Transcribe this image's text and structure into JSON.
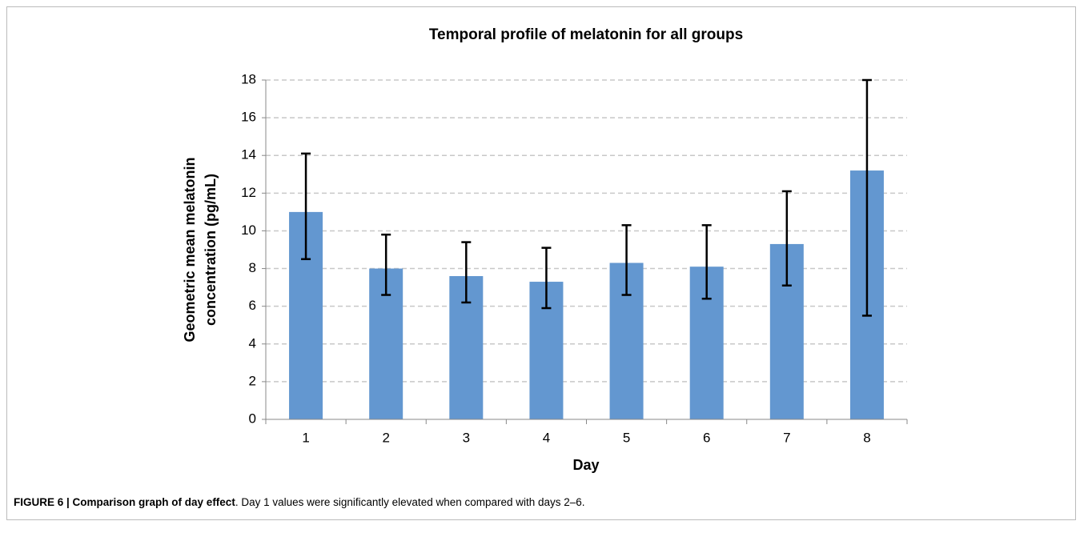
{
  "chart_data": {
    "type": "bar",
    "title": "Temporal profile of melatonin for all groups",
    "xlabel": "Day",
    "ylabel": [
      "Geometric mean melatonin",
      "concentration (pg/mL)"
    ],
    "categories": [
      "1",
      "2",
      "3",
      "4",
      "5",
      "6",
      "7",
      "8"
    ],
    "values": [
      11.0,
      8.0,
      7.6,
      7.3,
      8.3,
      8.1,
      9.3,
      13.2
    ],
    "error_low": [
      8.5,
      6.6,
      6.2,
      5.9,
      6.6,
      6.4,
      7.1,
      5.5
    ],
    "error_high": [
      14.1,
      9.8,
      9.4,
      9.1,
      10.3,
      10.3,
      12.1,
      18
    ],
    "color": "#6397d0",
    "ylim": [
      0,
      18
    ],
    "yticks": [
      0,
      2,
      4,
      6,
      8,
      10,
      12,
      14,
      16,
      18
    ],
    "grid": true,
    "caption_label": "FIGURE 6 | Comparison graph of day effect",
    "caption_text": ". Day 1 values were significantly elevated when compared with days 2–6."
  }
}
